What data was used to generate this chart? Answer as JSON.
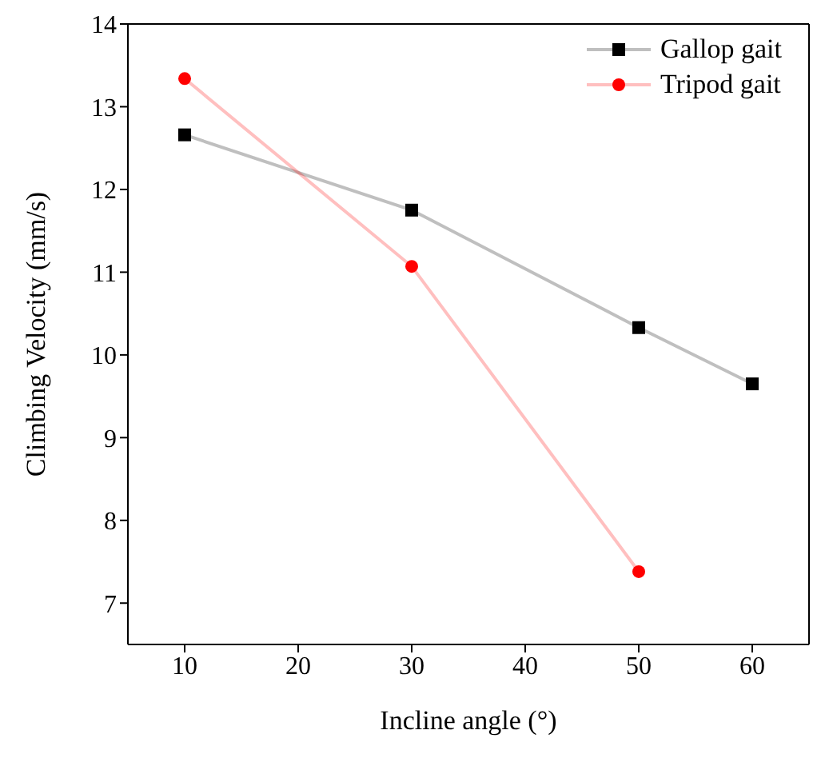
{
  "chart_data": {
    "type": "line",
    "xlabel": "Incline angle (°)",
    "ylabel": "Climbing Velocity (mm/s)",
    "x": [
      10,
      30,
      50,
      60
    ],
    "series": [
      {
        "name": "Gallop gait",
        "color": "#000000",
        "marker": "square",
        "values": [
          12.66,
          11.75,
          10.33,
          9.65
        ]
      },
      {
        "name": "Tripod gait",
        "color": "#ff0000",
        "marker": "circle",
        "values": [
          13.34,
          11.07,
          7.38,
          null
        ]
      }
    ],
    "xlim": [
      5,
      65
    ],
    "xticks": [
      10,
      20,
      30,
      40,
      50,
      60
    ],
    "ylim": [
      6.5,
      14
    ],
    "yticks": [
      7,
      8,
      9,
      10,
      11,
      12,
      13,
      14
    ],
    "legend": "top right"
  }
}
